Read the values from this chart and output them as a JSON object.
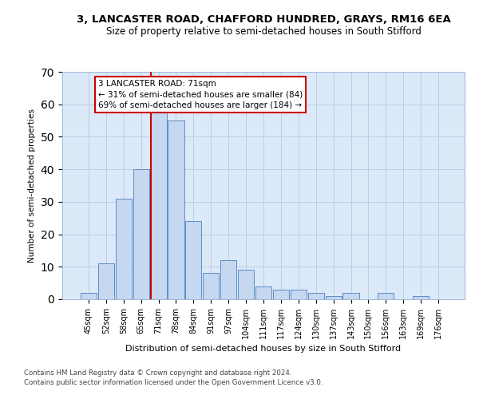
{
  "title1": "3, LANCASTER ROAD, CHAFFORD HUNDRED, GRAYS, RM16 6EA",
  "title2": "Size of property relative to semi-detached houses in South Stifford",
  "xlabel": "Distribution of semi-detached houses by size in South Stifford",
  "ylabel": "Number of semi-detached properties",
  "footnote1": "Contains HM Land Registry data © Crown copyright and database right 2024.",
  "footnote2": "Contains public sector information licensed under the Open Government Licence v3.0.",
  "categories": [
    "45sqm",
    "52sqm",
    "58sqm",
    "65sqm",
    "71sqm",
    "78sqm",
    "84sqm",
    "91sqm",
    "97sqm",
    "104sqm",
    "111sqm",
    "117sqm",
    "124sqm",
    "130sqm",
    "137sqm",
    "143sqm",
    "150sqm",
    "156sqm",
    "163sqm",
    "169sqm",
    "176sqm"
  ],
  "values": [
    2,
    11,
    31,
    40,
    59,
    55,
    24,
    8,
    12,
    9,
    4,
    3,
    3,
    2,
    1,
    2,
    0,
    2,
    0,
    1,
    0
  ],
  "bar_color": "#c5d8f0",
  "bar_edge_color": "#5b8dc8",
  "highlight_index": 4,
  "highlight_line_color": "#cc0000",
  "annotation_line1": "3 LANCASTER ROAD: 71sqm",
  "annotation_line2": "← 31% of semi-detached houses are smaller (84)",
  "annotation_line3": "69% of semi-detached houses are larger (184) →",
  "annotation_box_edge": "#cc0000",
  "ylim": [
    0,
    70
  ],
  "yticks": [
    0,
    10,
    20,
    30,
    40,
    50,
    60,
    70
  ],
  "grid_color": "#b8cfe8",
  "bg_color": "#dce9f8",
  "title1_fontsize": 9.5,
  "title2_fontsize": 8.5
}
